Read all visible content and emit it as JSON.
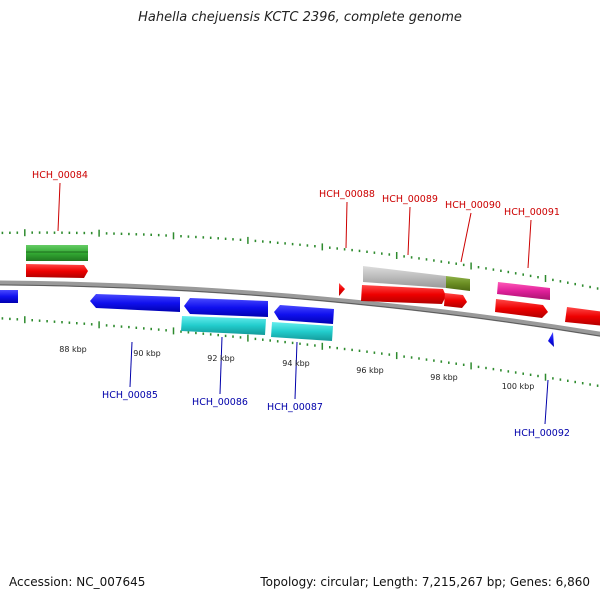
{
  "title": "Hahella chejuensis KCTC 2396, complete genome",
  "footer": {
    "accession": "Accession: NC_007645",
    "summary": "Topology: circular; Length: 7,215,267 bp; Genes: 6,860"
  },
  "colors": {
    "backbone": "#8a8a8a",
    "tick": "#2e8b2e",
    "forward_label": "#cc0000",
    "reverse_label": "#0000aa",
    "red_feature": "#ee0000",
    "blue_feature": "#1010ee",
    "cyan_feature": "#22cccc",
    "green_feature": "#33aa33",
    "gray_feature": "#bbbbbb",
    "olive_feature": "#6b8e23",
    "magenta_feature": "#e0209a"
  },
  "scale_labels": [
    "88 kbp",
    "90 kbp",
    "92 kbp",
    "94 kbp",
    "96 kbp",
    "98 kbp",
    "100 kbp"
  ],
  "gene_labels": {
    "forward": [
      "HCH_00084",
      "HCH_00088",
      "HCH_00089",
      "HCH_00090",
      "HCH_00091"
    ],
    "reverse": [
      "HCH_00085",
      "HCH_00086",
      "HCH_00087",
      "HCH_00092"
    ]
  }
}
